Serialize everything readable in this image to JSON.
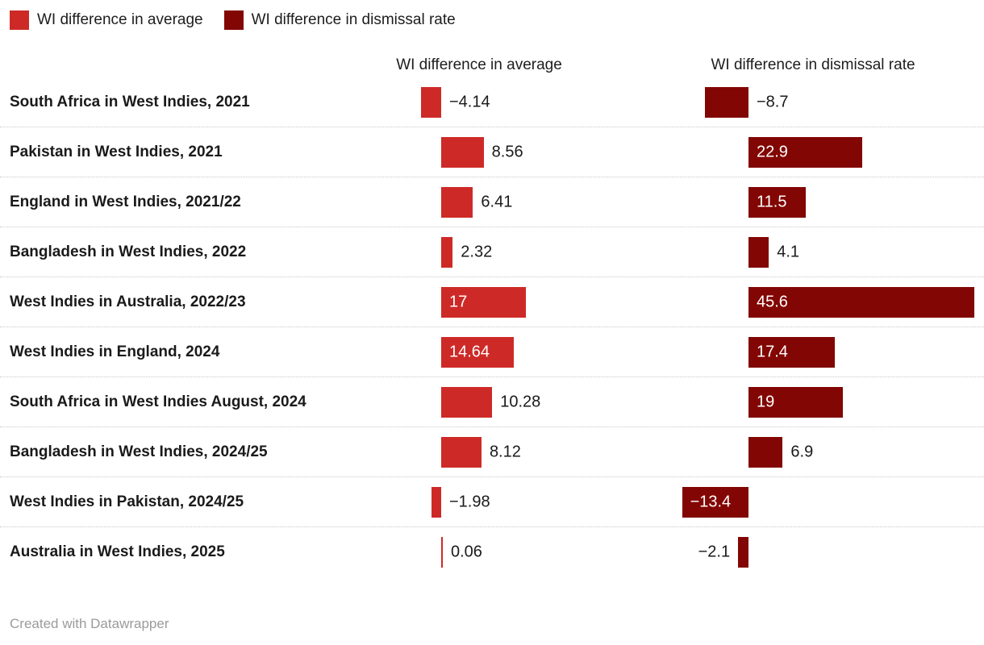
{
  "legend": {
    "items": [
      {
        "label": "WI difference in average",
        "color": "#cd2a27"
      },
      {
        "label": "WI difference in dismissal rate",
        "color": "#820603"
      }
    ]
  },
  "footer": {
    "credit": "Created with Datawrapper"
  },
  "chart_data": {
    "type": "bar",
    "variant": "split-bars-horizontal",
    "title": "",
    "legend_position": "top",
    "grid": "dotted-row-separators",
    "shared_value_scale": true,
    "categories": [
      "South Africa in West Indies, 2021",
      "Pakistan in West Indies, 2021",
      "England in West Indies, 2021/22",
      "Bangladesh in West Indies, 2022",
      "West Indies in Australia, 2022/23",
      "West Indies in England, 2024",
      "South Africa in West Indies August, 2024",
      "Bangladesh in West Indies, 2024/25",
      "West Indies in Pakistan, 2024/25",
      "Australia in West Indies, 2025"
    ],
    "series": [
      {
        "name": "WI difference in average",
        "color": "#cd2a27",
        "values": [
          -4.14,
          8.56,
          6.41,
          2.32,
          17,
          14.64,
          10.28,
          8.12,
          -1.98,
          0.06
        ],
        "labels": [
          "−4.14",
          "8.56",
          "6.41",
          "2.32",
          "17",
          "14.64",
          "10.28",
          "8.12",
          "−1.98",
          "0.06"
        ],
        "label_pos": [
          "right",
          "right",
          "right",
          "right",
          "inside",
          "inside",
          "right",
          "right",
          "right",
          "right"
        ]
      },
      {
        "name": "WI difference in dismissal rate",
        "color": "#820603",
        "values": [
          -8.7,
          22.9,
          11.5,
          4.1,
          45.6,
          17.4,
          19,
          6.9,
          -13.4,
          -2.1
        ],
        "labels": [
          "−8.7",
          "22.9",
          "11.5",
          "4.1",
          "45.6",
          "17.4",
          "19",
          "6.9",
          "−13.4",
          "−2.1"
        ],
        "label_pos": [
          "right",
          "inside",
          "inside",
          "right",
          "inside",
          "inside",
          "inside",
          "right",
          "inside",
          "left"
        ]
      }
    ]
  }
}
